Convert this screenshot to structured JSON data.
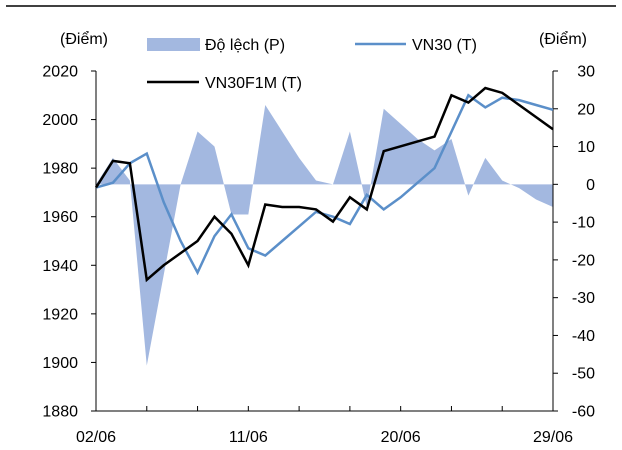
{
  "chart_data": {
    "type": "line",
    "left_axis": {
      "label": "(Điểm)",
      "min": 1880,
      "max": 2020,
      "ticks": [
        1880,
        1900,
        1920,
        1940,
        1960,
        1980,
        2000,
        2020
      ]
    },
    "right_axis": {
      "label": "(Điểm)",
      "min": -60,
      "max": 30,
      "ticks": [
        -60,
        -50,
        -40,
        -30,
        -20,
        -10,
        0,
        10,
        20,
        30
      ]
    },
    "x_labels": [
      "02/06",
      "11/06",
      "20/06",
      "29/06"
    ],
    "grid": false,
    "legend_position": "top",
    "x_count": 28,
    "series": [
      {
        "name": "Độ lệch (P)",
        "axis": "right",
        "style": "area",
        "color": "#a3b8e0",
        "values": [
          0,
          7,
          1,
          -48,
          -24,
          0,
          14,
          10,
          -8,
          -8,
          21,
          14,
          7,
          1,
          0,
          14,
          -6,
          20,
          16,
          12,
          9,
          12,
          -3,
          7,
          1,
          -1,
          -4,
          -6
        ]
      },
      {
        "name": "VN30 (T)",
        "axis": "left",
        "style": "line",
        "color": "#5b8fc9",
        "values": [
          1972,
          1974,
          1982,
          1986,
          1966,
          1950,
          1937,
          1952,
          1961,
          1947,
          1944,
          1950,
          1956,
          1962,
          1960,
          1957,
          1969,
          1963,
          1968,
          1974,
          1980,
          1995,
          2010,
          2005,
          2009,
          2008,
          2006,
          2004
        ]
      },
      {
        "name": "VN30F1M (T)",
        "axis": "left",
        "style": "line",
        "color": "#000000",
        "values": [
          1972,
          1983,
          1982,
          1934,
          1940,
          1945,
          1950,
          1960,
          1953,
          1940,
          1965,
          1964,
          1964,
          1963,
          1958,
          1968,
          1963,
          1987,
          1989,
          1991,
          1993,
          2010,
          2007,
          2013,
          2011,
          2006,
          2001,
          1996
        ]
      }
    ]
  }
}
